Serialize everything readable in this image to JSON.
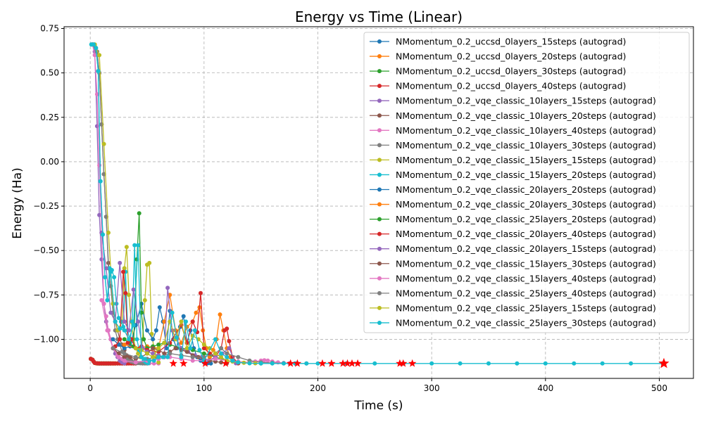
{
  "chart_data": {
    "type": "line",
    "title": "Energy vs Time (Linear)",
    "xlabel": "Time (s)",
    "ylabel": "Energy (Ha)",
    "xlim": [
      -23,
      530
    ],
    "ylim": [
      -1.22,
      0.76
    ],
    "xticks": [
      0,
      100,
      200,
      300,
      400,
      500
    ],
    "yticks": [
      0.75,
      0.5,
      0.25,
      0.0,
      -0.25,
      -0.5,
      -0.75,
      -1.0
    ],
    "xtick_labels": [
      "0",
      "100",
      "200",
      "300",
      "400",
      "500"
    ],
    "ytick_labels": [
      "0.75",
      "0.50",
      "0.25",
      "0.00",
      "−0.25",
      "−0.50",
      "−0.75",
      "−1.00"
    ],
    "grid": true,
    "legend_position": "upper right",
    "final_marker": "red star",
    "series": [
      {
        "name": "NMomentum_0.2_uccsd_0layers_15steps (autograd)",
        "color": "#1f77b4",
        "x": [
          0.5,
          2,
          3,
          4,
          5,
          6,
          7,
          8,
          9,
          10,
          11,
          12,
          13,
          14,
          15,
          16,
          17,
          18
        ],
        "y": [
          -1.11,
          -1.115,
          -1.125,
          -1.133,
          -1.135,
          -1.136,
          -1.136,
          -1.136,
          -1.136,
          -1.136,
          -1.136,
          -1.136,
          -1.136,
          -1.136,
          -1.136,
          -1.136,
          -1.136,
          -1.136
        ]
      },
      {
        "name": "NMomentum_0.2_uccsd_0layers_20steps (autograd)",
        "color": "#ff7f0e",
        "x": [
          0.5,
          2,
          3,
          4,
          5,
          6,
          7,
          8,
          9,
          10,
          11,
          12,
          13,
          14,
          15,
          16,
          17,
          18,
          19,
          20,
          21,
          22
        ],
        "y": [
          -1.11,
          -1.115,
          -1.125,
          -1.133,
          -1.135,
          -1.136,
          -1.136,
          -1.136,
          -1.136,
          -1.136,
          -1.136,
          -1.136,
          -1.136,
          -1.136,
          -1.136,
          -1.136,
          -1.136,
          -1.136,
          -1.136,
          -1.136,
          -1.136,
          -1.136
        ]
      },
      {
        "name": "NMomentum_0.2_uccsd_0layers_30steps (autograd)",
        "color": "#2ca02c",
        "x": [
          0.5,
          2,
          3,
          4,
          6,
          8,
          10,
          12,
          14,
          16,
          18,
          20,
          22,
          24,
          26,
          28,
          30,
          32
        ],
        "y": [
          -1.11,
          -1.115,
          -1.125,
          -1.133,
          -1.135,
          -1.136,
          -1.136,
          -1.136,
          -1.136,
          -1.136,
          -1.136,
          -1.136,
          -1.136,
          -1.136,
          -1.136,
          -1.136,
          -1.136,
          -1.136
        ]
      },
      {
        "name": "NMomentum_0.2_uccsd_0layers_40steps (autograd)",
        "color": "#d62728",
        "x": [
          0.5,
          2,
          3,
          4,
          6,
          8,
          10,
          12,
          14,
          16,
          18,
          20,
          22,
          24,
          26,
          28,
          30,
          32,
          34,
          36,
          38,
          40
        ],
        "y": [
          -1.11,
          -1.115,
          -1.125,
          -1.133,
          -1.135,
          -1.136,
          -1.136,
          -1.136,
          -1.136,
          -1.136,
          -1.136,
          -1.136,
          -1.136,
          -1.136,
          -1.136,
          -1.136,
          -1.136,
          -1.136,
          -1.136,
          -1.136,
          -1.136,
          -1.136
        ]
      },
      {
        "name": "NMomentum_0.2_vqe_classic_10layers_15steps (autograd)",
        "color": "#9467bd",
        "x": [
          2,
          4,
          6,
          8,
          10,
          12,
          14,
          16,
          18,
          20,
          22,
          24,
          26,
          28,
          30
        ],
        "y": [
          0.66,
          0.62,
          0.2,
          -0.3,
          -0.55,
          -0.8,
          -0.9,
          -0.95,
          -1.0,
          -1.05,
          -1.08,
          -1.1,
          -1.12,
          -1.13,
          -1.135
        ]
      },
      {
        "name": "NMomentum_0.2_vqe_classic_10layers_20steps (autograd)",
        "color": "#8c564b",
        "x": [
          2,
          4,
          6,
          8,
          10,
          12,
          14,
          16,
          18,
          20,
          22,
          24,
          26,
          28,
          30,
          32,
          34,
          36,
          38,
          40
        ],
        "y": [
          0.66,
          0.65,
          0.62,
          0.5,
          0.21,
          -0.07,
          -0.31,
          -0.57,
          -0.7,
          -0.8,
          -0.9,
          -0.95,
          -1.0,
          -1.03,
          -1.06,
          -1.09,
          -1.1,
          -1.12,
          -1.13,
          -1.135
        ]
      },
      {
        "name": "NMomentum_0.2_vqe_classic_10layers_40steps (autograd)",
        "color": "#e377c2",
        "x": [
          2,
          4,
          6,
          8,
          10,
          12,
          14,
          16,
          18,
          20,
          24,
          28,
          32,
          36,
          40,
          44,
          48,
          52,
          56,
          60
        ],
        "y": [
          0.66,
          0.6,
          0.38,
          -0.02,
          -0.4,
          -0.8,
          -0.87,
          -0.95,
          -1.0,
          -1.05,
          -1.09,
          -1.11,
          -1.12,
          -1.125,
          -1.13,
          -1.132,
          -1.134,
          -1.135,
          -1.136,
          -1.136
        ]
      },
      {
        "name": "NMomentum_0.2_vqe_classic_10layers_30steps (autograd)",
        "color": "#7f7f7f",
        "x": [
          2,
          4,
          6,
          8,
          10,
          12,
          14,
          16,
          18,
          20,
          22,
          24,
          26,
          28,
          30,
          32,
          34,
          36,
          38,
          40,
          42,
          44,
          46,
          48,
          50
        ],
        "y": [
          0.66,
          0.66,
          0.62,
          0.5,
          0.21,
          -0.07,
          -0.31,
          -0.6,
          -0.7,
          -0.85,
          -0.95,
          -1.0,
          -1.03,
          -1.07,
          -1.1,
          -1.11,
          -1.12,
          -1.125,
          -1.13,
          -1.132,
          -1.134,
          -1.135,
          -1.136,
          -1.136,
          -1.136
        ]
      },
      {
        "name": "NMomentum_0.2_vqe_classic_15layers_15steps (autograd)",
        "color": "#bcbd22",
        "x": [
          4,
          8,
          12,
          16,
          20,
          24,
          28,
          30,
          32,
          34,
          36,
          38,
          40,
          42,
          44,
          46,
          48,
          50,
          52,
          54,
          56,
          58,
          60
        ],
        "y": [
          0.66,
          0.6,
          0.1,
          -0.4,
          -0.8,
          -0.95,
          -0.9,
          -0.6,
          -0.48,
          -0.75,
          -0.9,
          -1.0,
          -1.05,
          -1.08,
          -1.1,
          -1.0,
          -0.78,
          -0.58,
          -0.57,
          -0.97,
          -1.05,
          -1.1,
          -1.13
        ]
      },
      {
        "name": "NMomentum_0.2_vqe_classic_15layers_20steps (autograd)",
        "color": "#17becf",
        "x": [
          1,
          3,
          5,
          7,
          9,
          11,
          13,
          15,
          17,
          19,
          21,
          23,
          25,
          27,
          29,
          31,
          33,
          35,
          37,
          39,
          41,
          43,
          45,
          47,
          49,
          51
        ],
        "y": [
          0.66,
          0.66,
          0.64,
          0.51,
          -0.11,
          -0.41,
          -0.65,
          -0.78,
          -0.6,
          -0.61,
          -0.65,
          -0.8,
          -0.88,
          -0.9,
          -0.93,
          -0.62,
          -0.95,
          -1.02,
          -0.9,
          -0.47,
          -1.0,
          -1.06,
          -1.1,
          -1.12,
          -1.13,
          -1.135
        ]
      },
      {
        "name": "NMomentum_0.2_vqe_classic_20layers_20steps (autograd)",
        "color": "#1f77b4",
        "x": [
          20,
          25,
          30,
          35,
          40,
          45,
          50,
          55,
          58,
          61,
          64,
          67,
          70,
          73,
          76,
          79,
          82,
          85,
          88,
          91,
          94,
          97,
          100,
          103,
          106
        ],
        "y": [
          -1.0,
          -1.03,
          -1.05,
          -1.04,
          -0.92,
          -0.8,
          -0.95,
          -1.0,
          -0.95,
          -0.82,
          -0.9,
          -1.05,
          -0.84,
          -1.0,
          -1.05,
          -0.93,
          -0.87,
          -1.02,
          -0.95,
          -1.05,
          -1.1,
          -1.12,
          -1.13,
          -1.135,
          -1.136
        ]
      },
      {
        "name": "NMomentum_0.2_vqe_classic_20layers_30steps (autograd)",
        "color": "#ff7f0e",
        "x": [
          30,
          40,
          50,
          60,
          65,
          70,
          75,
          80,
          85,
          90,
          93,
          96,
          99,
          102,
          105,
          108,
          111,
          114,
          117,
          120,
          123,
          126,
          130
        ],
        "y": [
          -1.03,
          -1.05,
          -1.04,
          -1.05,
          -0.9,
          -0.75,
          -0.95,
          -1.02,
          -0.93,
          -0.9,
          -0.85,
          -0.82,
          -0.95,
          -1.05,
          -1.1,
          -1.06,
          -1.0,
          -0.86,
          -0.95,
          -1.05,
          -1.1,
          -1.12,
          -1.135
        ]
      },
      {
        "name": "NMomentum_0.2_vqe_classic_25layers_20steps (autograd)",
        "color": "#2ca02c",
        "x": [
          30,
          34,
          38,
          41,
          43,
          45,
          47,
          50,
          55,
          60,
          65,
          70,
          80,
          90,
          100,
          110,
          120,
          130
        ],
        "y": [
          -1.0,
          -1.02,
          -1.04,
          -0.55,
          -0.29,
          -0.85,
          -1.0,
          -1.05,
          -1.04,
          -1.03,
          -1.02,
          -1.03,
          -1.05,
          -1.06,
          -1.08,
          -1.1,
          -1.12,
          -1.135
        ]
      },
      {
        "name": "NMomentum_0.2_vqe_classic_20layers_40steps (autograd)",
        "color": "#d62728",
        "x": [
          22,
          26,
          29,
          31,
          33,
          36,
          40,
          45,
          50,
          60,
          70,
          80,
          85,
          90,
          94,
          97,
          100,
          105,
          110,
          115,
          118,
          120,
          122,
          125,
          130
        ],
        "y": [
          -1.04,
          -1.0,
          -0.62,
          -0.74,
          -1.02,
          -1.0,
          -1.05,
          -1.04,
          -1.06,
          -1.07,
          -1.02,
          -0.92,
          -1.02,
          -0.9,
          -0.96,
          -0.74,
          -1.05,
          -1.08,
          -1.1,
          -1.05,
          -0.95,
          -0.94,
          -1.01,
          -1.1,
          -1.135
        ]
      },
      {
        "name": "NMomentum_0.2_vqe_classic_20layers_15steps (autograd)",
        "color": "#9467bd",
        "x": [
          10,
          14,
          18,
          22,
          26,
          30,
          34,
          38,
          42,
          46,
          50,
          55,
          60,
          65,
          68,
          72,
          76,
          80,
          86,
          92,
          98,
          104,
          110,
          116,
          122,
          128
        ],
        "y": [
          -0.4,
          -0.6,
          -0.85,
          -0.9,
          -0.57,
          -0.9,
          -0.95,
          -0.72,
          -0.9,
          -1.05,
          -1.07,
          -1.08,
          -1.09,
          -1.1,
          -0.71,
          -0.95,
          -1.0,
          -1.05,
          -1.07,
          -1.09,
          -1.1,
          -1.12,
          -1.1,
          -1.08,
          -1.05,
          -1.135
        ]
      },
      {
        "name": "NMomentum_0.2_vqe_classic_15layers_30steps (autograd)",
        "color": "#8c564b",
        "x": [
          20,
          25,
          30,
          35,
          40,
          45,
          50,
          55,
          60,
          65,
          70,
          75,
          80,
          85,
          90,
          95,
          100,
          105,
          110,
          115,
          120
        ],
        "y": [
          -1.05,
          -1.08,
          -1.1,
          -1.1,
          -1.11,
          -1.1,
          -1.08,
          -1.05,
          -1.06,
          -1.08,
          -1.07,
          -1.05,
          -1.06,
          -1.07,
          -1.09,
          -1.1,
          -1.11,
          -1.12,
          -1.125,
          -1.13,
          -1.135
        ]
      },
      {
        "name": "NMomentum_0.2_vqe_classic_15layers_40steps (autograd)",
        "color": "#e377c2",
        "x": [
          10,
          15,
          20,
          25,
          30,
          40,
          50,
          60,
          70,
          80,
          90,
          100,
          110,
          120,
          130,
          140,
          145,
          150,
          153,
          156,
          160,
          165,
          170,
          175,
          180
        ],
        "y": [
          -0.78,
          -0.95,
          -1.05,
          -1.1,
          -1.12,
          -1.13,
          -1.12,
          -1.11,
          -1.1,
          -1.11,
          -1.12,
          -1.12,
          -1.11,
          -1.12,
          -1.125,
          -1.13,
          -1.125,
          -1.12,
          -1.118,
          -1.12,
          -1.125,
          -1.13,
          -1.133,
          -1.135,
          -1.136
        ]
      },
      {
        "name": "NMomentum_0.2_vqe_classic_25layers_40steps (autograd)",
        "color": "#7f7f7f",
        "x": [
          20,
          30,
          40,
          50,
          60,
          70,
          80,
          90,
          100,
          110,
          115,
          120,
          130,
          140,
          150,
          160,
          170,
          180,
          190
        ],
        "y": [
          -1.05,
          -1.08,
          -1.1,
          -1.11,
          -1.1,
          -1.08,
          -1.09,
          -1.1,
          -1.1,
          -1.08,
          -1.05,
          -1.08,
          -1.1,
          -1.12,
          -1.13,
          -1.133,
          -1.135,
          -1.136,
          -1.136
        ]
      },
      {
        "name": "NMomentum_0.2_vqe_classic_25layers_15steps (autograd)",
        "color": "#bcbd22",
        "x": [
          40,
          45,
          50,
          55,
          60,
          65,
          70,
          75,
          80,
          85,
          90,
          95,
          100,
          105,
          110,
          115,
          120,
          125,
          130,
          135,
          140,
          145,
          150
        ],
        "y": [
          -1.05,
          -1.06,
          -1.08,
          -1.1,
          -1.05,
          -1.02,
          -0.9,
          -1.0,
          -0.9,
          -1.05,
          -0.98,
          -1.0,
          -1.03,
          -1.05,
          -1.08,
          -1.1,
          -1.12,
          -1.125,
          -1.13,
          -1.132,
          -1.134,
          -1.135,
          -1.136
        ]
      },
      {
        "name": "NMomentum_0.2_vqe_classic_25layers_30steps (autograd)",
        "color": "#17becf",
        "x": [
          1,
          3,
          5,
          7,
          9,
          11,
          13,
          15,
          18,
          22,
          26,
          30,
          34,
          38,
          42,
          45,
          48,
          52,
          56,
          60,
          64,
          68,
          72,
          76,
          80,
          84,
          88,
          92,
          96,
          100,
          110,
          115,
          120,
          125,
          130,
          140,
          150,
          160,
          170,
          180,
          190,
          200,
          225,
          250,
          275,
          300,
          325,
          350,
          375,
          400,
          425,
          450,
          475,
          503
        ],
        "y": [
          0.66,
          0.66,
          0.64,
          0.51,
          -0.11,
          -0.41,
          -0.65,
          -0.78,
          -0.62,
          -0.9,
          -0.94,
          -0.95,
          -1.0,
          -0.92,
          -0.47,
          -1.1,
          -1.11,
          -1.12,
          -1.12,
          -1.1,
          -1.1,
          -1.1,
          -0.85,
          -0.99,
          -1.1,
          -0.9,
          -1.05,
          -0.95,
          -1.06,
          -1.12,
          -1.0,
          -1.08,
          -1.1,
          -1.12,
          -1.13,
          -1.135,
          -1.136,
          -1.136,
          -1.136,
          -1.136,
          -1.136,
          -1.136,
          -1.136,
          -1.136,
          -1.136,
          -1.136,
          -1.136,
          -1.136,
          -1.136,
          -1.136,
          -1.136,
          -1.136,
          -1.136,
          -1.136
        ]
      }
    ],
    "star_markers": {
      "x": [
        73,
        82,
        101,
        119,
        176,
        182,
        204,
        212,
        222,
        226,
        230,
        235,
        272,
        275,
        283,
        504
      ],
      "y": [
        -1.136,
        -1.136,
        -1.136,
        -1.136,
        -1.136,
        -1.136,
        -1.136,
        -1.136,
        -1.136,
        -1.136,
        -1.136,
        -1.136,
        -1.136,
        -1.136,
        -1.136,
        -1.136
      ]
    }
  }
}
